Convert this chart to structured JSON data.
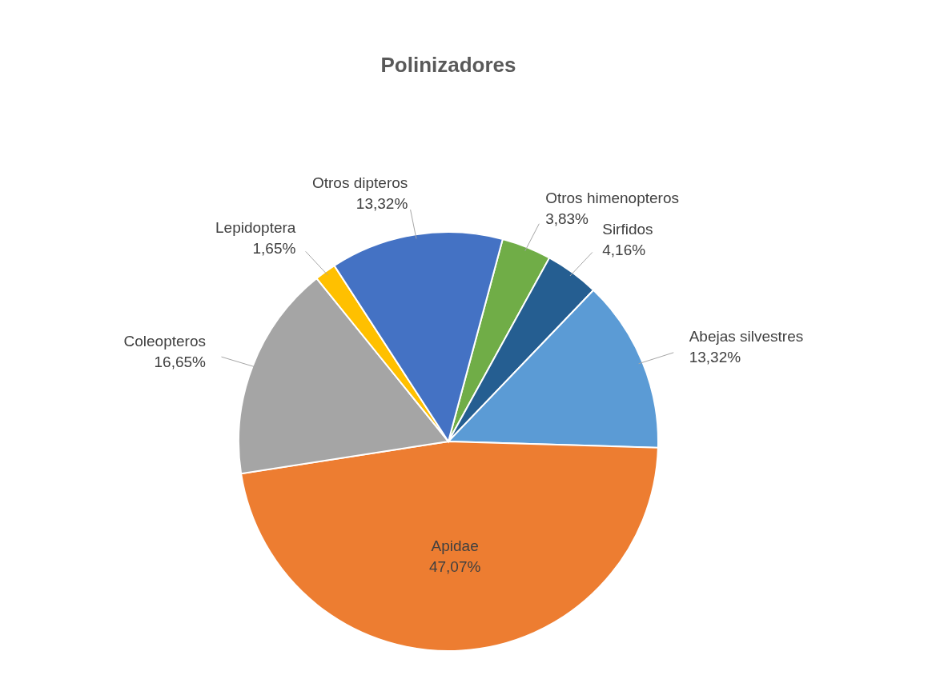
{
  "chart_data": {
    "type": "pie",
    "title": "Polinizadores",
    "categories": [
      "Otros himenopteros",
      "Sirfidos",
      "Abejas silvestres",
      "Apidae",
      "Coleopteros",
      "Lepidoptera",
      "Otros dipteros"
    ],
    "values": [
      3.83,
      4.16,
      13.32,
      47.07,
      16.65,
      1.65,
      13.32
    ],
    "value_labels": [
      "3,83%",
      "4,16%",
      "13,32%",
      "47,07%",
      "16,65%",
      "1,65%",
      "13,32%"
    ],
    "colors": [
      "#70ad47",
      "#255e91",
      "#5b9bd5",
      "#ed7d31",
      "#a5a5a5",
      "#ffc000",
      "#4472c4"
    ]
  }
}
